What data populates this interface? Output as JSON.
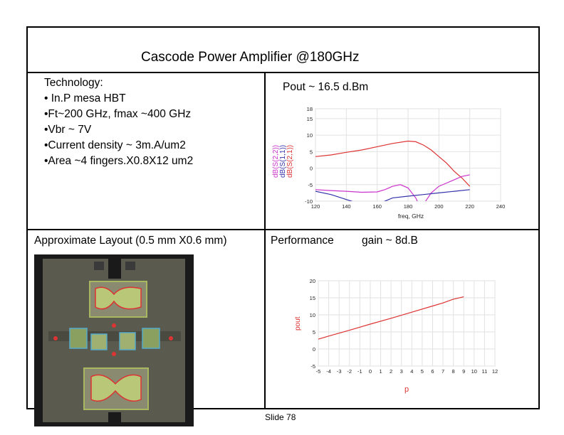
{
  "slide": {
    "title": "Cascode Power Amplifier @180GHz",
    "footer": "Slide 78"
  },
  "technology": {
    "heading": "Technology:",
    "bullets": [
      "• In.P mesa HBT",
      "•Ft~200 GHz, fmax ~400 GHz",
      "•Vbr ~ 7V",
      "•Current density ~ 3m.A/um2",
      "•Area ~4 fingers.X0.8X12 um2"
    ]
  },
  "pout_label": "Pout ~ 16.5 d.Bm",
  "layout_label": "Approximate Layout (0.5 mm X0.6 mm)",
  "performance_label": "Performance",
  "gain_label": "gain ~ 8d.B",
  "colors": {
    "s22": "#cc33cc",
    "s11": "#3333aa",
    "s21": "#dd3333",
    "pout": "#dd3333"
  },
  "chart_data": [
    {
      "type": "line",
      "xlabel": "freq, GHz",
      "ylabel": "",
      "xlim": [
        120,
        240
      ],
      "ylim": [
        -10,
        18
      ],
      "x_ticks": [
        120,
        140,
        160,
        180,
        200,
        220,
        240
      ],
      "y_ticks": [
        -10,
        -5,
        0,
        5,
        10,
        15,
        18
      ],
      "legend": [
        "dB(S(2,2))",
        "dB(S(1,1))",
        "dB(S(2,1))"
      ],
      "legend_placement": "left, vertical",
      "series": [
        {
          "name": "dB(S(2,1))",
          "x": [
            120,
            130,
            140,
            150,
            160,
            170,
            180,
            185,
            190,
            195,
            200,
            205,
            210,
            215,
            220
          ],
          "y": [
            3.5,
            4,
            4.8,
            5.5,
            6.5,
            7.5,
            8.2,
            8,
            7,
            5.5,
            3.5,
            1.5,
            -1,
            -3,
            -5.5
          ]
        },
        {
          "name": "dB(S(2,2))",
          "x": [
            120,
            130,
            140,
            150,
            160,
            165,
            170,
            175,
            180,
            185,
            188,
            190,
            195,
            200,
            205,
            210,
            215,
            220
          ],
          "y": [
            -6.5,
            -6.8,
            -7,
            -7.3,
            -7.2,
            -6.5,
            -5.5,
            -5,
            -6,
            -9,
            -12,
            -11,
            -7.5,
            -5.5,
            -4.5,
            -3.5,
            -2.5,
            -2
          ]
        },
        {
          "name": "dB(S(1,1))",
          "x": [
            120,
            130,
            140,
            150,
            155,
            160,
            170,
            180,
            190,
            200,
            210,
            220
          ],
          "y": [
            -7,
            -8,
            -9.5,
            -11,
            -12,
            -11,
            -9,
            -8.5,
            -8,
            -7.5,
            -7,
            -6.5
          ]
        }
      ]
    },
    {
      "type": "line",
      "xlabel": "p",
      "ylabel": "pout",
      "xlim": [
        -5,
        12
      ],
      "ylim": [
        -5,
        20
      ],
      "x_ticks": [
        -5,
        -4,
        -3,
        -2,
        -1,
        0,
        1,
        2,
        3,
        4,
        5,
        6,
        7,
        8,
        9,
        10,
        11,
        12
      ],
      "y_ticks": [
        -5,
        0,
        5,
        10,
        15,
        20
      ],
      "series": [
        {
          "name": "",
          "x": [
            -6,
            -4,
            -2,
            0,
            2,
            4,
            6,
            7,
            8,
            9
          ],
          "y": [
            2,
            3.8,
            5.5,
            7.3,
            9,
            10.8,
            12.6,
            13.5,
            14.6,
            15.3
          ]
        }
      ]
    }
  ]
}
